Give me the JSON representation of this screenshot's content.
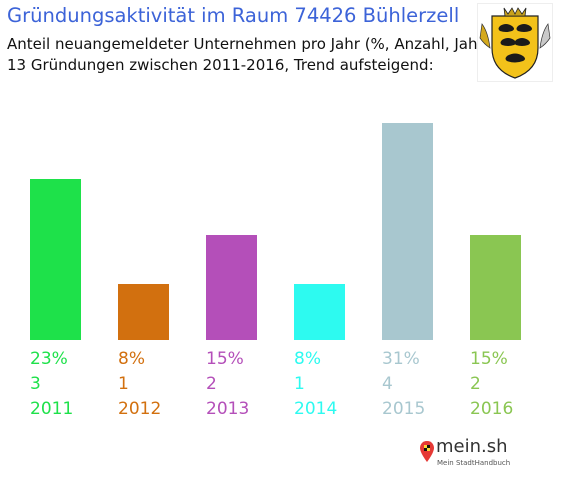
{
  "header": {
    "title": "Gründungsaktivität im Raum 74426 Bühlerzell",
    "subtitle_line1": "Anteil neuangemeldeter Unternehmen pro Jahr (%, Anzahl, Jahr)",
    "subtitle_line2": "13 Gründungen zwischen 2011-2016, Trend aufsteigend:"
  },
  "branding": {
    "crest_icon": "baden-wuerttemberg-coat-of-arms-icon",
    "logo_text": "mein.sh",
    "logo_tagline": "Mein StadtHandbuch",
    "logo_icon": "map-marker-icon"
  },
  "chart_data": {
    "type": "bar",
    "categories": [
      "2011",
      "2012",
      "2013",
      "2014",
      "2015",
      "2016"
    ],
    "values": [
      23,
      8,
      15,
      8,
      31,
      15
    ],
    "value_labels": [
      "23%",
      "8%",
      "15%",
      "8%",
      "31%",
      "15%"
    ],
    "counts": [
      "3",
      "1",
      "2",
      "1",
      "4",
      "2"
    ],
    "colors": [
      "#1ee14a",
      "#d2700f",
      "#b44fb9",
      "#2dfaf0",
      "#a8c7cf",
      "#8ac652"
    ],
    "ylim": [
      0,
      31
    ],
    "grid": false
  }
}
